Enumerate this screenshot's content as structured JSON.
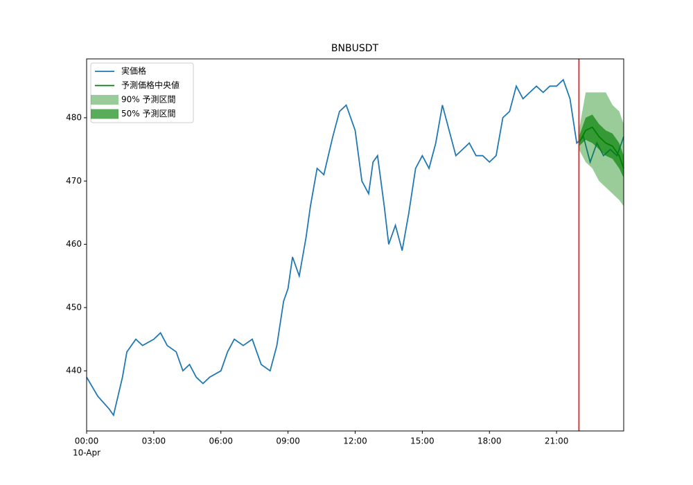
{
  "chart_data": {
    "type": "forecast",
    "title": "BNBUSDT",
    "x_date_label": "10-Apr",
    "xlim": [
      0,
      24
    ],
    "ylim": [
      430.5,
      489.3
    ],
    "xticks": [
      {
        "value": 0,
        "label": "00:00"
      },
      {
        "value": 3,
        "label": "03:00"
      },
      {
        "value": 6,
        "label": "06:00"
      },
      {
        "value": 9,
        "label": "09:00"
      },
      {
        "value": 12,
        "label": "12:00"
      },
      {
        "value": 15,
        "label": "15:00"
      },
      {
        "value": 18,
        "label": "18:00"
      },
      {
        "value": 21,
        "label": "21:00"
      }
    ],
    "yticks": [
      440,
      450,
      460,
      470,
      480
    ],
    "forecast_start": 22,
    "forecast_start_color": "#d62728",
    "legend": "upper left",
    "series": [
      {
        "name": "実価格",
        "color": "#1f77b4",
        "x": [
          0,
          0.5,
          1.0,
          1.2,
          1.6,
          1.8,
          2.2,
          2.5,
          3.0,
          3.3,
          3.6,
          4.0,
          4.3,
          4.6,
          4.9,
          5.2,
          5.5,
          6.0,
          6.3,
          6.6,
          7.0,
          7.4,
          7.8,
          8.2,
          8.5,
          8.8,
          9.0,
          9.2,
          9.5,
          9.8,
          10.0,
          10.3,
          10.6,
          11.0,
          11.3,
          11.6,
          12.0,
          12.3,
          12.6,
          12.8,
          13.0,
          13.3,
          13.5,
          13.8,
          14.1,
          14.4,
          14.7,
          15.0,
          15.3,
          15.6,
          15.9,
          16.2,
          16.5,
          16.8,
          17.1,
          17.4,
          17.7,
          18.0,
          18.3,
          18.6,
          18.9,
          19.2,
          19.5,
          19.8,
          20.1,
          20.4,
          20.7,
          21.0,
          21.3,
          21.6,
          21.9,
          22.2,
          22.5,
          22.8,
          23.1,
          23.4,
          23.7,
          24.0
        ],
        "values": [
          439,
          436,
          434,
          433,
          439,
          443,
          445,
          444,
          445,
          446,
          444,
          443,
          440,
          441,
          439,
          438,
          439,
          440,
          443,
          445,
          444,
          445,
          441,
          440,
          444,
          451,
          453,
          458,
          455,
          461,
          466,
          472,
          471,
          477,
          481,
          482,
          478,
          470,
          468,
          473,
          474,
          466,
          460,
          463,
          459,
          465,
          472,
          474,
          472,
          476,
          482,
          478,
          474,
          475,
          476,
          474,
          474,
          473,
          474,
          480,
          481,
          485,
          483,
          484,
          485,
          484,
          485,
          485,
          486,
          483,
          476,
          477,
          473,
          476,
          474,
          475,
          474,
          477
        ]
      },
      {
        "name": "予測価格中央値",
        "color": "#008000",
        "x": [
          22.0,
          22.3,
          22.6,
          22.9,
          23.2,
          23.5,
          23.8,
          24.0
        ],
        "values": [
          476,
          478,
          478.5,
          477,
          476,
          475.5,
          474,
          472
        ]
      }
    ],
    "bands": [
      {
        "name": "90% 予測区間",
        "color": "#008000",
        "alpha": 0.4,
        "x": [
          22.0,
          22.3,
          22.6,
          22.9,
          23.2,
          23.5,
          23.8,
          24.0
        ],
        "lower": [
          475,
          473,
          472,
          470,
          469,
          468,
          467,
          466
        ],
        "upper": [
          478,
          484,
          484,
          484,
          484,
          482,
          481,
          479
        ]
      },
      {
        "name": "50% 予測区間",
        "color": "#008000",
        "alpha": 0.65,
        "x": [
          22.0,
          22.3,
          22.6,
          22.9,
          23.2,
          23.5,
          23.8,
          24.0
        ],
        "lower": [
          475.5,
          476.5,
          476,
          475,
          474,
          473.5,
          472,
          470.5
        ],
        "upper": [
          477,
          480,
          480.5,
          479,
          478,
          477.5,
          476,
          474
        ]
      }
    ]
  }
}
